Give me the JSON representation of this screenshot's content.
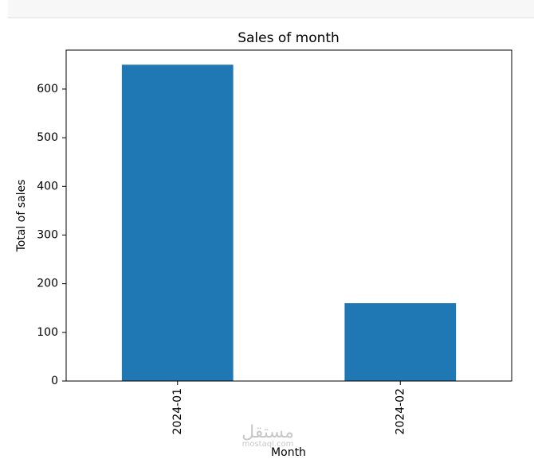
{
  "chart_data": {
    "type": "bar",
    "title": "Sales of month",
    "xlabel": "Month",
    "ylabel": "Total of sales",
    "categories": [
      "2024-01",
      "2024-02"
    ],
    "values": [
      650,
      160
    ],
    "ylim": [
      0,
      680
    ],
    "yticks": [
      0,
      100,
      200,
      300,
      400,
      500,
      600
    ],
    "grid": false,
    "bar_color": "#1f77b4"
  },
  "watermark": {
    "logo_text": "مستقل",
    "site_text": "mostaql.com"
  }
}
